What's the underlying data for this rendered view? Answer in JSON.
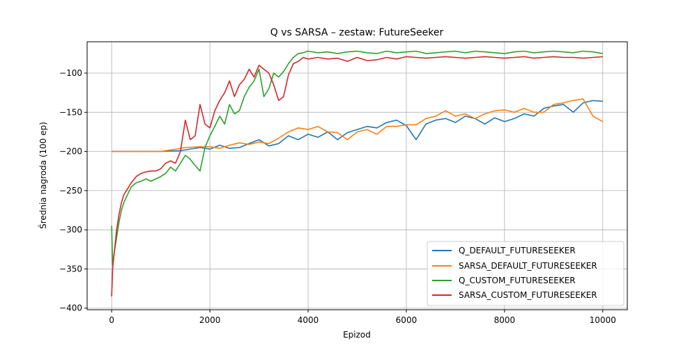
{
  "chart_data": {
    "type": "line",
    "title": "Q vs SARSA – zestaw: FutureSeeker",
    "xlabel": "Epizod",
    "ylabel": "Średnia nagroda (100 ep)",
    "xlim": [
      -500,
      10500
    ],
    "ylim": [
      -402,
      -60
    ],
    "xticks": [
      0,
      2000,
      4000,
      6000,
      8000,
      10000
    ],
    "yticks": [
      -400,
      -350,
      -300,
      -250,
      -200,
      -150,
      -100
    ],
    "xtick_labels": [
      "0",
      "2000",
      "4000",
      "6000",
      "8000",
      "10000"
    ],
    "ytick_labels": [
      "−400",
      "−350",
      "−300",
      "−250",
      "−200",
      "−150",
      "−100"
    ],
    "grid": true,
    "legend_position": "lower-right",
    "series": [
      {
        "name": "Q_DEFAULT_FUTURESEEKER",
        "color": "#1f77b4",
        "x": [
          0,
          1000,
          1400,
          1800,
          2000,
          2200,
          2400,
          2600,
          2800,
          3000,
          3200,
          3400,
          3600,
          3800,
          4000,
          4200,
          4400,
          4600,
          4800,
          5000,
          5200,
          5400,
          5600,
          5800,
          6000,
          6200,
          6400,
          6600,
          6800,
          7000,
          7200,
          7400,
          7600,
          7800,
          8000,
          8200,
          8400,
          8600,
          8800,
          9000,
          9200,
          9400,
          9600,
          9800,
          10000
        ],
        "y": [
          -200,
          -200,
          -199,
          -195,
          -197,
          -192,
          -196,
          -195,
          -190,
          -185,
          -193,
          -190,
          -180,
          -185,
          -178,
          -182,
          -175,
          -185,
          -176,
          -172,
          -168,
          -170,
          -163,
          -160,
          -167,
          -185,
          -165,
          -160,
          -158,
          -163,
          -155,
          -158,
          -165,
          -157,
          -162,
          -158,
          -152,
          -155,
          -145,
          -142,
          -140,
          -150,
          -138,
          -135,
          -136
        ]
      },
      {
        "name": "SARSA_DEFAULT_FUTURESEEKER",
        "color": "#ff7f0e",
        "x": [
          0,
          1000,
          1200,
          1500,
          1800,
          2000,
          2200,
          2400,
          2600,
          2800,
          3000,
          3200,
          3400,
          3600,
          3800,
          4000,
          4200,
          4400,
          4600,
          4800,
          5000,
          5200,
          5400,
          5600,
          5800,
          6000,
          6200,
          6400,
          6600,
          6800,
          7000,
          7200,
          7400,
          7600,
          7800,
          8000,
          8200,
          8400,
          8600,
          8800,
          9000,
          9200,
          9400,
          9600,
          9800,
          10000
        ],
        "y": [
          -200,
          -200,
          -198,
          -195,
          -194,
          -194,
          -196,
          -192,
          -189,
          -191,
          -188,
          -190,
          -183,
          -175,
          -170,
          -172,
          -168,
          -175,
          -176,
          -185,
          -175,
          -172,
          -178,
          -168,
          -168,
          -166,
          -166,
          -158,
          -155,
          -148,
          -155,
          -152,
          -158,
          -152,
          -148,
          -147,
          -150,
          -145,
          -150,
          -150,
          -140,
          -138,
          -135,
          -133,
          -155,
          -162
        ]
      },
      {
        "name": "Q_CUSTOM_FUTURESEEKER",
        "color": "#2ca02c",
        "x": [
          0,
          20,
          50,
          100,
          150,
          200,
          250,
          300,
          400,
          500,
          600,
          700,
          800,
          900,
          1000,
          1100,
          1200,
          1300,
          1400,
          1500,
          1600,
          1700,
          1800,
          1900,
          2000,
          2100,
          2200,
          2300,
          2400,
          2500,
          2600,
          2700,
          2800,
          2900,
          3000,
          3100,
          3200,
          3300,
          3400,
          3500,
          3600,
          3700,
          3800,
          3900,
          4000,
          4200,
          4400,
          4600,
          4800,
          5000,
          5200,
          5400,
          5600,
          5800,
          6000,
          6200,
          6400,
          6600,
          6800,
          7000,
          7200,
          7400,
          7600,
          7800,
          8000,
          8200,
          8400,
          8600,
          8800,
          9000,
          9200,
          9400,
          9600,
          9800,
          10000
        ],
        "y": [
          -295,
          -345,
          -330,
          -310,
          -290,
          -275,
          -265,
          -258,
          -245,
          -240,
          -238,
          -235,
          -238,
          -235,
          -232,
          -228,
          -220,
          -225,
          -215,
          -205,
          -210,
          -218,
          -225,
          -195,
          -180,
          -168,
          -155,
          -165,
          -140,
          -152,
          -148,
          -130,
          -118,
          -110,
          -95,
          -130,
          -120,
          -100,
          -105,
          -98,
          -88,
          -80,
          -75,
          -74,
          -72,
          -74,
          -73,
          -75,
          -73,
          -72,
          -74,
          -75,
          -72,
          -74,
          -73,
          -72,
          -75,
          -74,
          -73,
          -72,
          -74,
          -72,
          -73,
          -74,
          -75,
          -73,
          -72,
          -74,
          -73,
          -72,
          -73,
          -74,
          -72,
          -73,
          -75
        ]
      },
      {
        "name": "SARSA_CUSTOM_FUTURESEEKER",
        "color": "#d62728",
        "x": [
          0,
          20,
          50,
          100,
          150,
          200,
          250,
          300,
          400,
          500,
          600,
          700,
          800,
          900,
          1000,
          1100,
          1200,
          1300,
          1400,
          1500,
          1600,
          1700,
          1800,
          1900,
          2000,
          2100,
          2200,
          2300,
          2400,
          2500,
          2600,
          2700,
          2800,
          2900,
          3000,
          3100,
          3200,
          3300,
          3400,
          3500,
          3600,
          3700,
          3800,
          3900,
          4000,
          4200,
          4400,
          4600,
          4800,
          5000,
          5200,
          5400,
          5600,
          5800,
          6000,
          6200,
          6400,
          6600,
          6800,
          7000,
          7200,
          7400,
          7600,
          7800,
          8000,
          8200,
          8400,
          8600,
          8800,
          9000,
          9200,
          9400,
          9600,
          9800,
          10000
        ],
        "y": [
          -385,
          -350,
          -330,
          -300,
          -280,
          -265,
          -255,
          -250,
          -240,
          -232,
          -228,
          -226,
          -225,
          -225,
          -222,
          -215,
          -212,
          -215,
          -200,
          -160,
          -185,
          -180,
          -140,
          -165,
          -170,
          -148,
          -135,
          -125,
          -110,
          -130,
          -115,
          -108,
          -95,
          -105,
          -90,
          -95,
          -100,
          -115,
          -135,
          -130,
          -102,
          -88,
          -85,
          -80,
          -82,
          -80,
          -82,
          -81,
          -85,
          -80,
          -84,
          -83,
          -80,
          -82,
          -79,
          -80,
          -81,
          -80,
          -79,
          -80,
          -81,
          -80,
          -79,
          -80,
          -81,
          -80,
          -79,
          -81,
          -80,
          -79,
          -80,
          -80,
          -81,
          -80,
          -79
        ]
      }
    ]
  }
}
